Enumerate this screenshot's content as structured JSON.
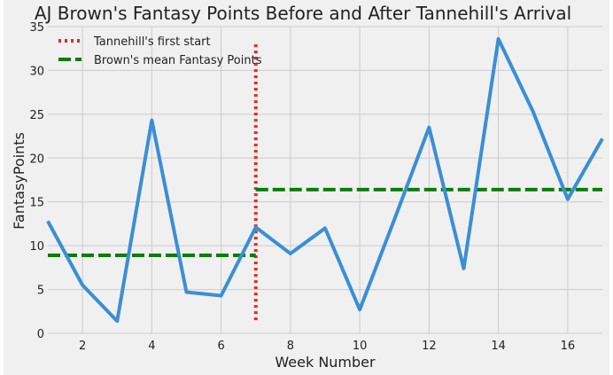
{
  "chart_data": {
    "type": "line",
    "title": "AJ Brown's Fantasy Points Before and After Tannehill's Arrival",
    "xlabel": "Week Number",
    "ylabel": "FantasyPoints",
    "xlim": [
      1,
      17
    ],
    "ylim": [
      0,
      35
    ],
    "grid": true,
    "legend_position": "top-left",
    "x_ticks": [
      2,
      4,
      6,
      8,
      10,
      12,
      14,
      16
    ],
    "y_ticks": [
      0,
      5,
      10,
      15,
      20,
      25,
      30,
      35
    ],
    "series": [
      {
        "color": "#3a8fd4",
        "x": [
          1,
          2,
          3,
          4,
          5,
          6,
          7,
          8,
          9,
          10,
          11,
          12,
          13,
          14,
          15,
          16,
          17
        ],
        "y": [
          12.8,
          5.5,
          1.4,
          24.3,
          4.7,
          4.3,
          12.1,
          9.1,
          12.0,
          2.7,
          13.0,
          23.5,
          7.4,
          33.6,
          25.3,
          15.3,
          22.2
        ]
      }
    ],
    "annotations": [
      {
        "label": "Tannehill's first start",
        "kind": "vertical-dotted",
        "color": "#e8261c",
        "x": 7,
        "y_range": [
          1.5,
          33
        ]
      },
      {
        "label": "Brown's mean Fantasy Points",
        "kind": "horizontal-dashed",
        "color": "#0a7d0a",
        "segments": [
          {
            "x_range": [
              1,
              7
            ],
            "y": 8.9
          },
          {
            "x_range": [
              7,
              17
            ],
            "y": 16.4
          }
        ]
      }
    ]
  }
}
